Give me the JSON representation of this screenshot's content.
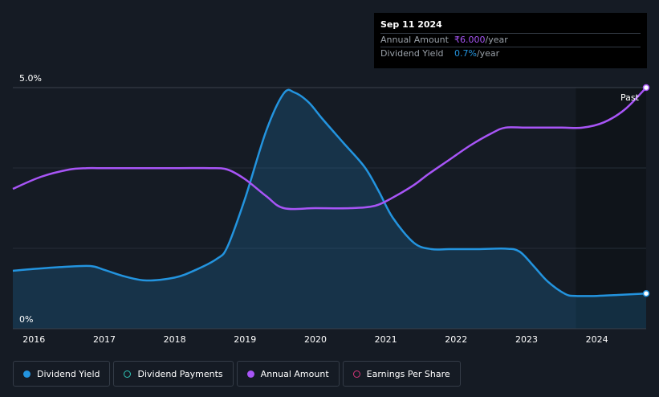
{
  "tooltip": {
    "date": "Sep 11 2024",
    "rows": [
      {
        "label": "Annual Amount",
        "value": "₹6.000",
        "unit": "/year"
      },
      {
        "label": "Dividend Yield",
        "value": "0.7%",
        "unit": "/year"
      }
    ]
  },
  "past_label": "Past",
  "legend": {
    "items": [
      {
        "label": "Dividend Yield",
        "color": "#2394df"
      },
      {
        "label": "Dividend Payments",
        "color": "#2ec4b6"
      },
      {
        "label": "Annual Amount",
        "color": "#a855f7"
      },
      {
        "label": "Earnings Per Share",
        "color": "#d6357a"
      }
    ]
  },
  "chart_data": {
    "type": "area",
    "xlim": [
      2015.7,
      2024.7
    ],
    "ylim": [
      0,
      5.0
    ],
    "y_tick_labels": [
      "5.0%",
      "0%"
    ],
    "x_tick_labels": [
      "2016",
      "2017",
      "2018",
      "2019",
      "2020",
      "2021",
      "2022",
      "2023",
      "2024"
    ],
    "x_ticks": [
      2016,
      2017,
      2018,
      2019,
      2020,
      2021,
      2022,
      2023,
      2024
    ],
    "grid": true,
    "forecast_shade_start": 2023.7,
    "series": [
      {
        "name": "Dividend Yield",
        "color": "#2394df",
        "axis": "yield",
        "x": [
          2015.7,
          2016.0,
          2016.4,
          2016.8,
          2017.0,
          2017.3,
          2017.6,
          2018.0,
          2018.3,
          2018.6,
          2018.75,
          2019.0,
          2019.3,
          2019.55,
          2019.7,
          2019.9,
          2020.1,
          2020.4,
          2020.7,
          2020.9,
          2021.1,
          2021.4,
          2021.65,
          2021.9,
          2022.3,
          2022.7,
          2022.9,
          2023.1,
          2023.3,
          2023.55,
          2023.7,
          2024.0,
          2024.3,
          2024.7
        ],
        "y": [
          1.2,
          1.24,
          1.28,
          1.3,
          1.22,
          1.08,
          1.0,
          1.06,
          1.22,
          1.45,
          1.7,
          2.7,
          4.1,
          4.88,
          4.9,
          4.7,
          4.35,
          3.85,
          3.35,
          2.85,
          2.3,
          1.78,
          1.65,
          1.65,
          1.65,
          1.66,
          1.6,
          1.3,
          0.98,
          0.72,
          0.68,
          0.68,
          0.7,
          0.73
        ]
      },
      {
        "name": "Annual Amount",
        "color": "#a855f7",
        "axis": "amount",
        "x": [
          2015.7,
          2016.1,
          2016.5,
          2016.75,
          2017.0,
          2018.0,
          2018.5,
          2018.75,
          2019.0,
          2019.3,
          2019.55,
          2020.0,
          2020.5,
          2020.85,
          2021.1,
          2021.4,
          2021.6,
          2021.9,
          2022.2,
          2022.5,
          2022.7,
          2023.0,
          2023.5,
          2023.8,
          2024.1,
          2024.4,
          2024.7
        ],
        "y": [
          2.9,
          3.15,
          3.3,
          3.33,
          3.33,
          3.33,
          3.33,
          3.3,
          3.1,
          2.75,
          2.5,
          2.5,
          2.5,
          2.55,
          2.72,
          2.98,
          3.2,
          3.5,
          3.8,
          4.05,
          4.17,
          4.17,
          4.17,
          4.17,
          4.28,
          4.55,
          5.0
        ]
      }
    ]
  }
}
